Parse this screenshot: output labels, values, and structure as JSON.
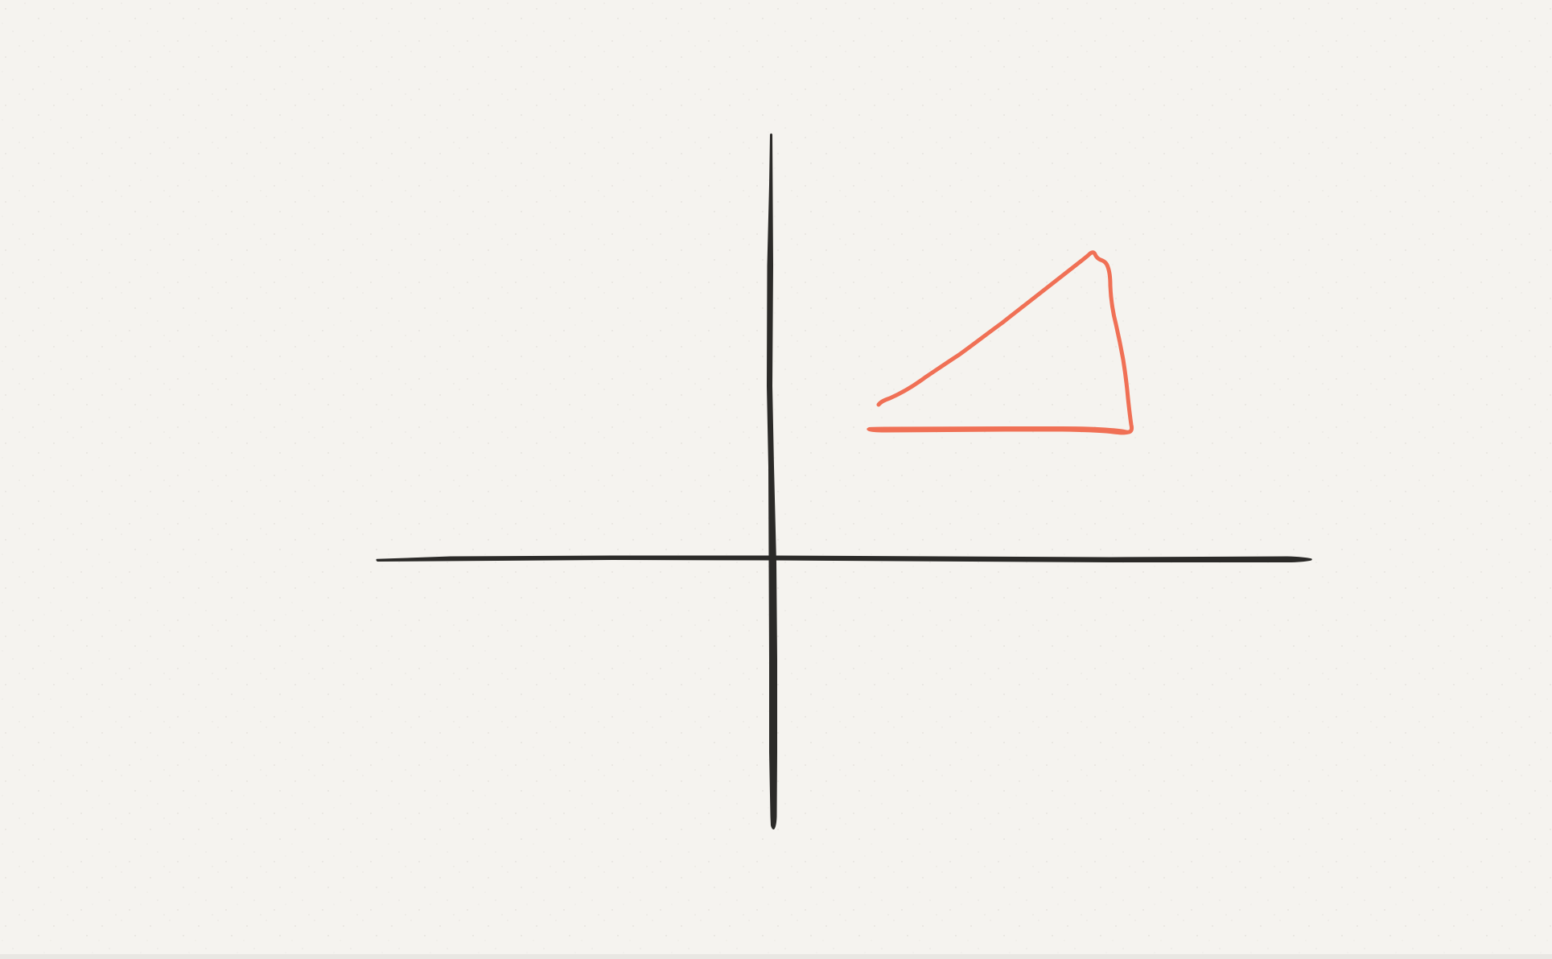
{
  "canvas": {
    "background_color": "#f5f3ef",
    "texture": "speckled-paper"
  },
  "strokes": [
    {
      "name": "horizontal-axis-stroke",
      "kind": "freehand-line",
      "color": "#2b2a28"
    },
    {
      "name": "vertical-axis-stroke",
      "kind": "freehand-line",
      "color": "#2b2a28"
    },
    {
      "name": "triangle-sketch-stroke",
      "kind": "freehand-triangle",
      "color": "#f07055"
    }
  ]
}
